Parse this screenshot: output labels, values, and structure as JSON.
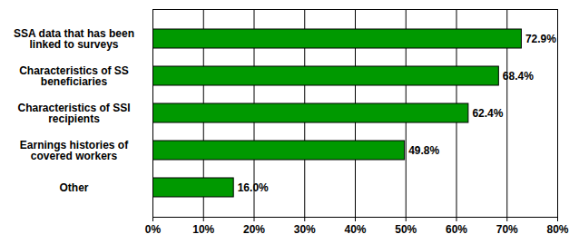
{
  "chart_data": {
    "type": "bar",
    "orientation": "horizontal",
    "categories": [
      "SSA data that has been linked to surveys",
      "Characteristics of SS beneficiaries",
      "Characteristics of SSI recipients",
      "Earnings histories of covered workers",
      "Other"
    ],
    "values": [
      72.9,
      68.4,
      62.4,
      49.8,
      16.0
    ],
    "value_labels": [
      "72.9%",
      "68.4%",
      "62.4%",
      "49.8%",
      "16.0%"
    ],
    "data_labels": true,
    "color": "#009900",
    "xlim": [
      0,
      80
    ],
    "xticks": [
      {
        "value": 0,
        "label": "0%"
      },
      {
        "value": 10,
        "label": "10%"
      },
      {
        "value": 20,
        "label": "20%"
      },
      {
        "value": 30,
        "label": "30%"
      },
      {
        "value": 40,
        "label": "40%"
      },
      {
        "value": 50,
        "label": "50%"
      },
      {
        "value": 60,
        "label": "60%"
      },
      {
        "value": 70,
        "label": "70%"
      },
      {
        "value": 80,
        "label": "80%"
      }
    ],
    "grid": true
  }
}
